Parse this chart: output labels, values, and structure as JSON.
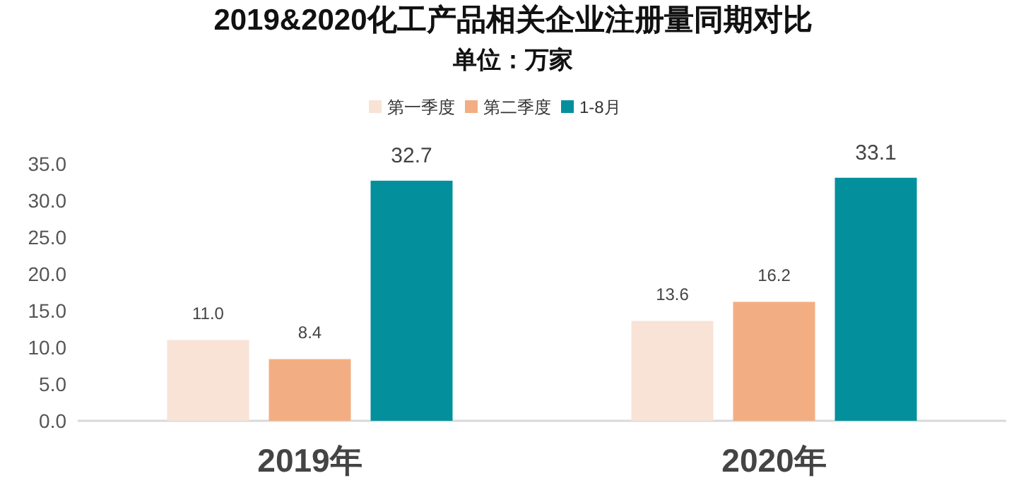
{
  "chart_data": {
    "type": "bar",
    "title": "2019&2020化工产品相关企业注册量同期对比",
    "subtitle": "单位：万家",
    "categories": [
      "2019年",
      "2020年"
    ],
    "series": [
      {
        "name": "第一季度",
        "color": "#f8e3d6",
        "values": [
          11.0,
          13.6
        ],
        "value_labels": [
          "11.0",
          "13.6"
        ]
      },
      {
        "name": "第二季度",
        "color": "#f2ae82",
        "values": [
          8.4,
          16.2
        ],
        "value_labels": [
          "8.4",
          "16.2"
        ]
      },
      {
        "name": "1-8月",
        "color": "#03909c",
        "values": [
          32.7,
          33.1
        ],
        "value_labels": [
          "32.7",
          "33.1"
        ]
      }
    ],
    "ylim": [
      0,
      35
    ],
    "yticks": [
      {
        "value": 0,
        "label": "0.0"
      },
      {
        "value": 5,
        "label": "5.0"
      },
      {
        "value": 10,
        "label": "10.0"
      },
      {
        "value": 15,
        "label": "15.0"
      },
      {
        "value": 20,
        "label": "20.0"
      },
      {
        "value": 25,
        "label": "25.0"
      },
      {
        "value": 30,
        "label": "30.0"
      },
      {
        "value": 35,
        "label": "35.0"
      }
    ],
    "legend": "top",
    "grid": false
  }
}
